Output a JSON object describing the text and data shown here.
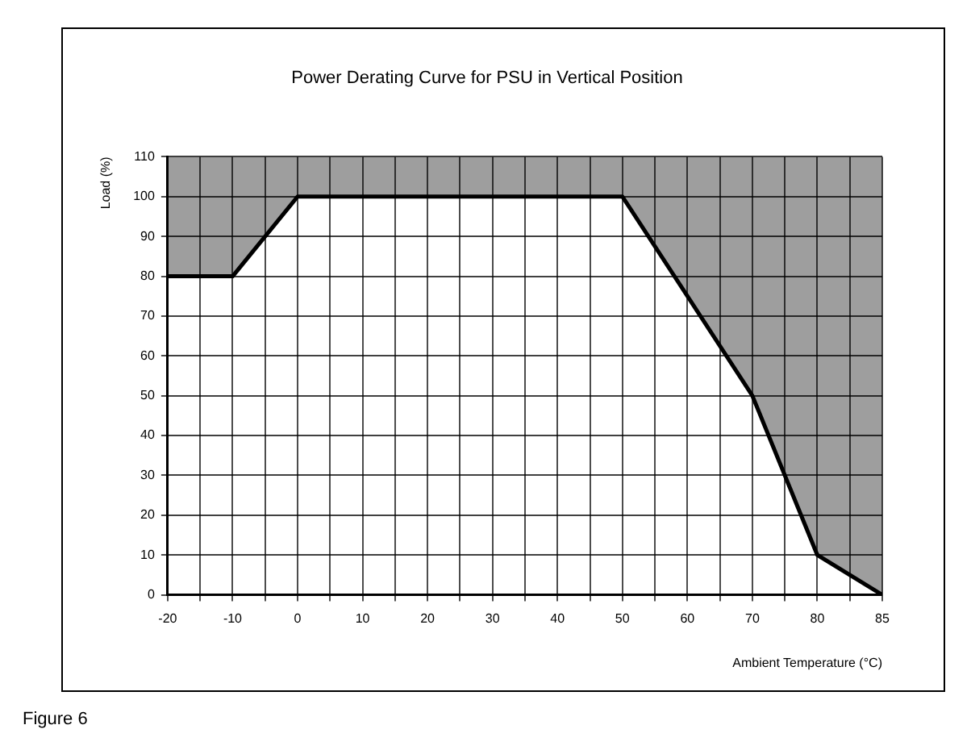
{
  "chart_data": {
    "type": "line",
    "title": "Power Derating Curve for PSU in Vertical Position",
    "xlabel": "Ambient Temperature (°C)",
    "ylabel": "Load (%)",
    "categories": [
      "-20",
      "-10",
      "0",
      "10",
      "20",
      "30",
      "40",
      "50",
      "60",
      "70",
      "80",
      "85"
    ],
    "series": [
      {
        "color": "#000000",
        "values": [
          80,
          80,
          100,
          100,
          100,
          100,
          100,
          100,
          75,
          50,
          10,
          0
        ],
        "lower": [
          80,
          80,
          100,
          100,
          100,
          100,
          100,
          100,
          75,
          50,
          10,
          0
        ],
        "upper": [
          110,
          110,
          110,
          110,
          110,
          110,
          110,
          110,
          110,
          110,
          110,
          110
        ]
      }
    ],
    "ylim": [
      0,
      110
    ],
    "yticks": [
      0,
      10,
      20,
      30,
      40,
      50,
      60,
      70,
      80,
      90,
      100,
      110
    ],
    "grid": true,
    "legend": false,
    "marker": "none",
    "annotations": [
      "Figure 6"
    ]
  }
}
